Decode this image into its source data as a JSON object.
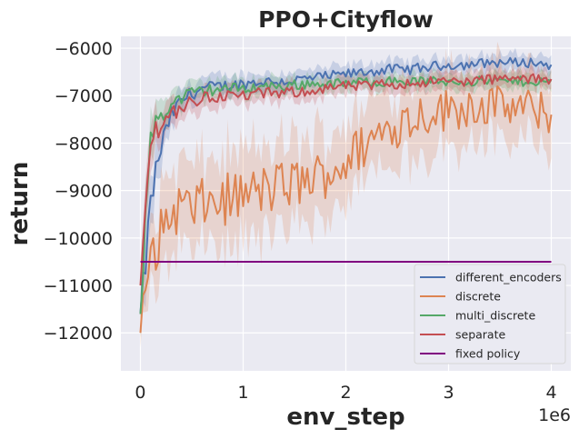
{
  "chart_data": {
    "type": "line",
    "title": "PPO+Cityflow",
    "xlabel": "env_step",
    "ylabel": "return",
    "x_offset_label": "1e6",
    "xlim": [
      -0.19,
      4.19
    ],
    "ylim": [
      -12800,
      -5750
    ],
    "xticks": [
      0,
      1,
      2,
      3,
      4
    ],
    "xtick_labels": [
      "0",
      "1",
      "2",
      "3",
      "4"
    ],
    "yticks": [
      -12000,
      -11000,
      -10000,
      -9000,
      -8000,
      -7000,
      -6000
    ],
    "ytick_labels": [
      "−12000",
      "−11000",
      "−10000",
      "−9000",
      "−8000",
      "−7000",
      "−6000"
    ],
    "grid": true,
    "legend_position": "lower-right",
    "x": [
      0.0,
      0.05,
      0.1,
      0.15,
      0.2,
      0.3,
      0.4,
      0.5,
      0.6,
      0.8,
      1.0,
      1.2,
      1.4,
      1.6,
      1.8,
      2.0,
      2.2,
      2.4,
      2.6,
      2.8,
      3.0,
      3.2,
      3.4,
      3.6,
      3.8,
      4.0
    ],
    "series": [
      {
        "name": "different_encoders",
        "color": "#4c72b0",
        "values": [
          -11600,
          -10500,
          -9300,
          -8600,
          -8100,
          -7400,
          -7100,
          -6950,
          -6850,
          -6800,
          -6750,
          -6700,
          -6700,
          -6650,
          -6600,
          -6550,
          -6500,
          -6450,
          -6450,
          -6400,
          -6350,
          -6350,
          -6300,
          -6300,
          -6300,
          -6350
        ],
        "band": [
          500,
          700,
          600,
          500,
          450,
          300,
          280,
          260,
          250,
          230,
          220,
          210,
          210,
          200,
          200,
          200,
          200,
          200,
          200,
          190,
          190,
          190,
          190,
          190,
          190,
          190
        ]
      },
      {
        "name": "discrete",
        "color": "#dd8452",
        "values": [
          -12000,
          -11000,
          -10450,
          -10200,
          -9900,
          -9500,
          -9300,
          -9400,
          -9300,
          -9200,
          -9100,
          -9000,
          -8900,
          -8800,
          -8650,
          -8400,
          -8000,
          -7700,
          -7500,
          -7350,
          -7300,
          -7200,
          -7200,
          -7250,
          -7300,
          -7400
        ],
        "band": [
          500,
          700,
          800,
          900,
          950,
          1000,
          1000,
          1000,
          1000,
          1000,
          1000,
          1000,
          1000,
          950,
          950,
          950,
          900,
          900,
          900,
          850,
          850,
          850,
          800,
          800,
          800,
          800
        ]
      },
      {
        "name": "multi_discrete",
        "color": "#55a868",
        "values": [
          -11600,
          -9600,
          -8000,
          -7500,
          -7400,
          -7200,
          -7050,
          -6950,
          -6900,
          -6850,
          -6850,
          -6800,
          -6800,
          -6750,
          -6750,
          -6750,
          -6700,
          -6700,
          -6700,
          -6700,
          -6700,
          -6700,
          -6700,
          -6700,
          -6700,
          -6700
        ],
        "band": [
          500,
          600,
          500,
          400,
          350,
          300,
          260,
          240,
          230,
          220,
          210,
          200,
          200,
          200,
          200,
          190,
          190,
          190,
          190,
          190,
          190,
          190,
          190,
          190,
          190,
          190
        ]
      },
      {
        "name": "separate",
        "color": "#c44e52",
        "values": [
          -11000,
          -9300,
          -8000,
          -7700,
          -7600,
          -7350,
          -7250,
          -7150,
          -7050,
          -7000,
          -7000,
          -6950,
          -6950,
          -6900,
          -6850,
          -6800,
          -6800,
          -6750,
          -6750,
          -6700,
          -6700,
          -6700,
          -6650,
          -6650,
          -6650,
          -6650
        ],
        "band": [
          500,
          600,
          500,
          450,
          400,
          330,
          300,
          280,
          260,
          240,
          230,
          220,
          220,
          210,
          210,
          200,
          200,
          200,
          200,
          200,
          200,
          200,
          200,
          200,
          200,
          200
        ]
      },
      {
        "name": "fixed policy",
        "color": "#800080",
        "values": [
          -10500,
          -10500,
          -10500,
          -10500,
          -10500,
          -10500,
          -10500,
          -10500,
          -10500,
          -10500,
          -10500,
          -10500,
          -10500,
          -10500,
          -10500,
          -10500,
          -10500,
          -10500,
          -10500,
          -10500,
          -10500,
          -10500,
          -10500,
          -10500,
          -10500,
          -10500
        ]
      }
    ]
  }
}
